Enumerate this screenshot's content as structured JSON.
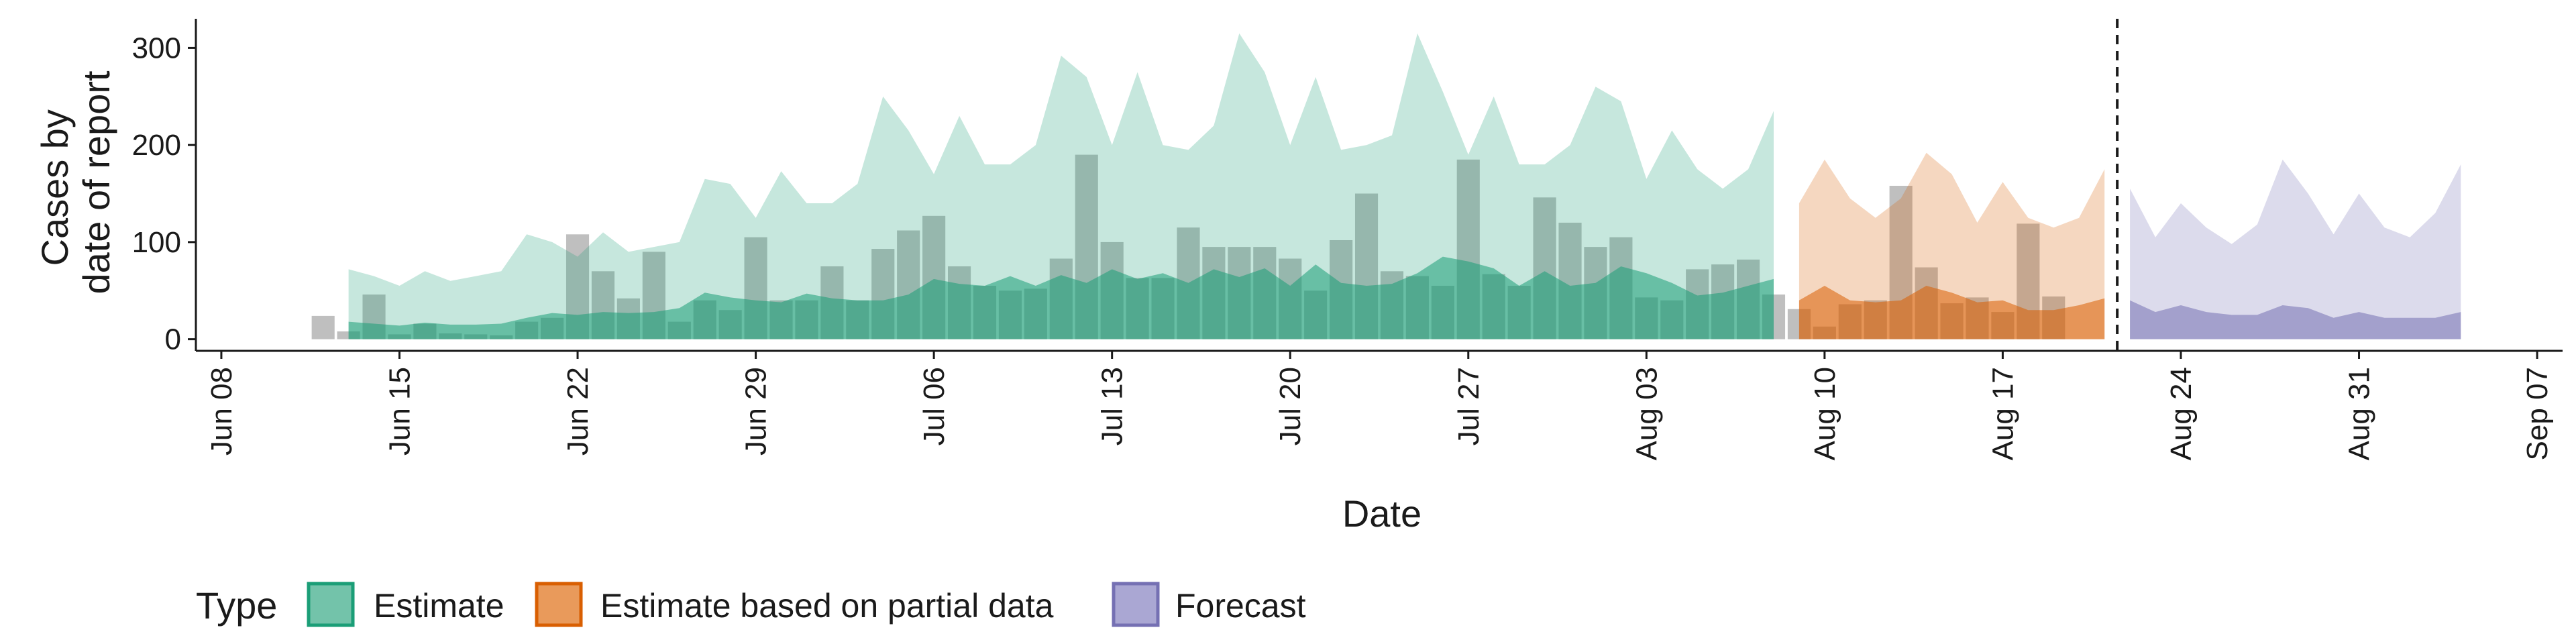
{
  "chart_data": {
    "type": "area",
    "xlabel": "Date",
    "ylabel_lines": [
      "Cases by",
      "date of report"
    ],
    "x_ticks": [
      "Jun 08",
      "Jun 15",
      "Jun 22",
      "Jun 29",
      "Jul 06",
      "Jul 13",
      "Jul 20",
      "Jul 27",
      "Aug 03",
      "Aug 10",
      "Aug 17",
      "Aug 24",
      "Aug 31",
      "Sep 07"
    ],
    "x_tick_dates": [
      "2020-06-08",
      "2020-06-15",
      "2020-06-22",
      "2020-06-29",
      "2020-07-06",
      "2020-07-13",
      "2020-07-20",
      "2020-07-27",
      "2020-08-03",
      "2020-08-10",
      "2020-08-17",
      "2020-08-24",
      "2020-08-31",
      "2020-09-07"
    ],
    "y_ticks": [
      0,
      100,
      200,
      300
    ],
    "xlim": [
      "2020-06-07",
      "2020-09-08"
    ],
    "ylim": [
      -12,
      330
    ],
    "forecast_start_date": "2020-08-21",
    "legend": {
      "title": "Type",
      "position": "bottom",
      "items": [
        {
          "label": "Estimate",
          "color": "#1b9e77"
        },
        {
          "label": "Estimate based on partial data",
          "color": "#d95f02"
        },
        {
          "label": "Forecast",
          "color": "#7570b3"
        }
      ]
    },
    "colors": {
      "Estimate": "#1b9e77",
      "Estimate based on partial data": "#d95f02",
      "Forecast": "#7570b3",
      "reported_bars": "#808080"
    },
    "reported_cases": {
      "start_date": "2020-06-12",
      "values": [
        24,
        8,
        46,
        5,
        16,
        6,
        5,
        4,
        18,
        22,
        108,
        70,
        42,
        90,
        18,
        40,
        30,
        105,
        40,
        40,
        75,
        40,
        93,
        112,
        127,
        75,
        55,
        50,
        52,
        83,
        190,
        100,
        63,
        63,
        115,
        95,
        95,
        95,
        83,
        50,
        102,
        150,
        70,
        65,
        55,
        185,
        67,
        55,
        146,
        120,
        95,
        105,
        43,
        40,
        72,
        77,
        82,
        46,
        31,
        13,
        36,
        40,
        158,
        74,
        37,
        43,
        28,
        119,
        44
      ]
    },
    "series": [
      {
        "name": "Estimate",
        "start_date": "2020-06-13",
        "lower": [
          0,
          0,
          0,
          0,
          0,
          0,
          0,
          0,
          0,
          0,
          0,
          0,
          0,
          0,
          0,
          0,
          0,
          0,
          0,
          0,
          0,
          0,
          0,
          0,
          0,
          0,
          0,
          0,
          0,
          0,
          0,
          0,
          0,
          0,
          0,
          0,
          0,
          0,
          0,
          0,
          0,
          0,
          0,
          0,
          0,
          0,
          0,
          0,
          0,
          0,
          0,
          0,
          0,
          0,
          0,
          0,
          0
        ],
        "median": [
          18,
          16,
          14,
          17,
          15,
          15,
          16,
          22,
          27,
          25,
          28,
          27,
          28,
          32,
          48,
          43,
          40,
          38,
          47,
          42,
          40,
          40,
          46,
          62,
          57,
          55,
          65,
          55,
          66,
          58,
          72,
          62,
          68,
          58,
          72,
          64,
          73,
          55,
          77,
          58,
          55,
          57,
          68,
          85,
          80,
          73,
          55,
          70,
          55,
          58,
          75,
          68,
          58,
          45,
          48,
          55,
          62
        ],
        "upper": [
          72,
          65,
          55,
          70,
          60,
          65,
          70,
          108,
          100,
          85,
          110,
          90,
          95,
          100,
          165,
          160,
          125,
          173,
          140,
          140,
          160,
          250,
          215,
          170,
          230,
          180,
          180,
          200,
          292,
          270,
          200,
          275,
          200,
          195,
          220,
          315,
          275,
          200,
          270,
          195,
          200,
          210,
          315,
          255,
          190,
          250,
          180,
          180,
          200,
          260,
          245,
          165,
          215,
          175,
          155,
          175,
          235
        ]
      },
      {
        "name": "Estimate based on partial data",
        "start_date": "2020-08-09",
        "lower": [
          0,
          0,
          0,
          0,
          0,
          0,
          0,
          0,
          0,
          0,
          0,
          0,
          0
        ],
        "median": [
          40,
          55,
          40,
          38,
          40,
          55,
          48,
          38,
          40,
          30,
          30,
          35,
          42
        ],
        "upper": [
          140,
          185,
          145,
          125,
          145,
          192,
          170,
          120,
          162,
          125,
          115,
          125,
          175
        ]
      },
      {
        "name": "Forecast",
        "start_date": "2020-08-22",
        "lower": [
          0,
          0,
          0,
          0,
          0,
          0,
          0,
          0,
          0,
          0,
          0,
          0,
          0,
          0
        ],
        "median": [
          40,
          28,
          35,
          28,
          25,
          25,
          35,
          32,
          22,
          28,
          22,
          22,
          22,
          28
        ],
        "upper": [
          155,
          105,
          140,
          115,
          98,
          118,
          185,
          150,
          108,
          150,
          115,
          105,
          130,
          180
        ]
      }
    ]
  }
}
